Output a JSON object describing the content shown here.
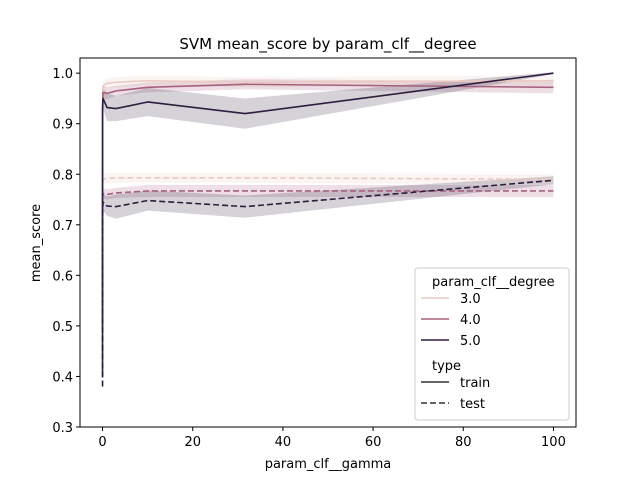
{
  "chart_data": {
    "type": "line",
    "title": "SVM mean_score by param_clf__degree",
    "xlabel": "param_clf__gamma",
    "ylabel": "mean_score",
    "xlim": [
      -5,
      105
    ],
    "ylim": [
      0.3,
      1.03
    ],
    "xticks": [
      0,
      20,
      40,
      60,
      80,
      100
    ],
    "yticks": [
      0.3,
      0.4,
      0.5,
      0.6,
      0.7,
      0.8,
      0.9,
      1.0
    ],
    "xtick_labels": [
      "0",
      "20",
      "40",
      "60",
      "80",
      "100"
    ],
    "ytick_labels": [
      "0.3",
      "0.4",
      "0.5",
      "0.6",
      "0.7",
      "0.8",
      "0.9",
      "1.0"
    ],
    "x": [
      0.0001,
      0.001,
      0.01,
      0.1,
      1,
      3,
      10,
      31.6,
      100
    ],
    "grid": false,
    "legend": {
      "placement": "lower right",
      "hue_title": "param_clf__degree",
      "style_title": "type",
      "style_entries": [
        {
          "label": "train",
          "dash": "solid"
        },
        {
          "label": "test",
          "dash": "dashed"
        }
      ]
    },
    "series": [
      {
        "name": "3.0",
        "type": "train",
        "color": "#eac9c2",
        "values": [
          0.55,
          0.8,
          0.95,
          0.975,
          0.98,
          0.982,
          0.985,
          0.982,
          0.985
        ],
        "lower": [
          0.4,
          0.75,
          0.93,
          0.965,
          0.97,
          0.972,
          0.976,
          0.972,
          0.975
        ],
        "upper": [
          0.7,
          0.85,
          0.97,
          0.985,
          0.99,
          0.992,
          0.995,
          0.992,
          0.995
        ]
      },
      {
        "name": "3.0",
        "type": "test",
        "color": "#eac9c2",
        "values": [
          0.5,
          0.7,
          0.78,
          0.79,
          0.792,
          0.793,
          0.793,
          0.793,
          0.79
        ],
        "lower": [
          0.4,
          0.65,
          0.76,
          0.78,
          0.782,
          0.783,
          0.783,
          0.783,
          0.78
        ],
        "upper": [
          0.6,
          0.75,
          0.8,
          0.8,
          0.802,
          0.803,
          0.803,
          0.803,
          0.8
        ]
      },
      {
        "name": "4.0",
        "type": "train",
        "color": "#a6607d",
        "values": [
          0.5,
          0.78,
          0.93,
          0.962,
          0.96,
          0.965,
          0.972,
          0.978,
          0.972
        ],
        "lower": [
          0.33,
          0.72,
          0.9,
          0.95,
          0.948,
          0.955,
          0.962,
          0.968,
          0.96
        ],
        "upper": [
          0.67,
          0.84,
          0.96,
          0.975,
          0.972,
          0.975,
          0.982,
          0.988,
          0.984
        ]
      },
      {
        "name": "4.0",
        "type": "test",
        "color": "#a6607d",
        "values": [
          0.45,
          0.68,
          0.75,
          0.762,
          0.76,
          0.763,
          0.767,
          0.767,
          0.767
        ],
        "lower": [
          0.35,
          0.63,
          0.73,
          0.752,
          0.75,
          0.753,
          0.755,
          0.755,
          0.755
        ],
        "upper": [
          0.55,
          0.73,
          0.77,
          0.772,
          0.77,
          0.773,
          0.779,
          0.779,
          0.779
        ]
      },
      {
        "name": "5.0",
        "type": "train",
        "color": "#2d1e3e",
        "values": [
          0.4,
          0.75,
          0.93,
          0.95,
          0.932,
          0.93,
          0.943,
          0.92,
          1.0
        ],
        "lower": [
          0.35,
          0.7,
          0.9,
          0.93,
          0.905,
          0.905,
          0.915,
          0.89,
          0.998
        ],
        "upper": [
          0.45,
          0.8,
          0.96,
          0.97,
          0.96,
          0.955,
          0.971,
          0.95,
          1.002
        ]
      },
      {
        "name": "5.0",
        "type": "test",
        "color": "#2d1e3e",
        "values": [
          0.38,
          0.62,
          0.72,
          0.745,
          0.737,
          0.736,
          0.748,
          0.736,
          0.788
        ],
        "lower": [
          0.34,
          0.58,
          0.7,
          0.728,
          0.718,
          0.712,
          0.728,
          0.714,
          0.78
        ],
        "upper": [
          0.42,
          0.66,
          0.74,
          0.762,
          0.756,
          0.76,
          0.768,
          0.758,
          0.796
        ]
      }
    ]
  }
}
